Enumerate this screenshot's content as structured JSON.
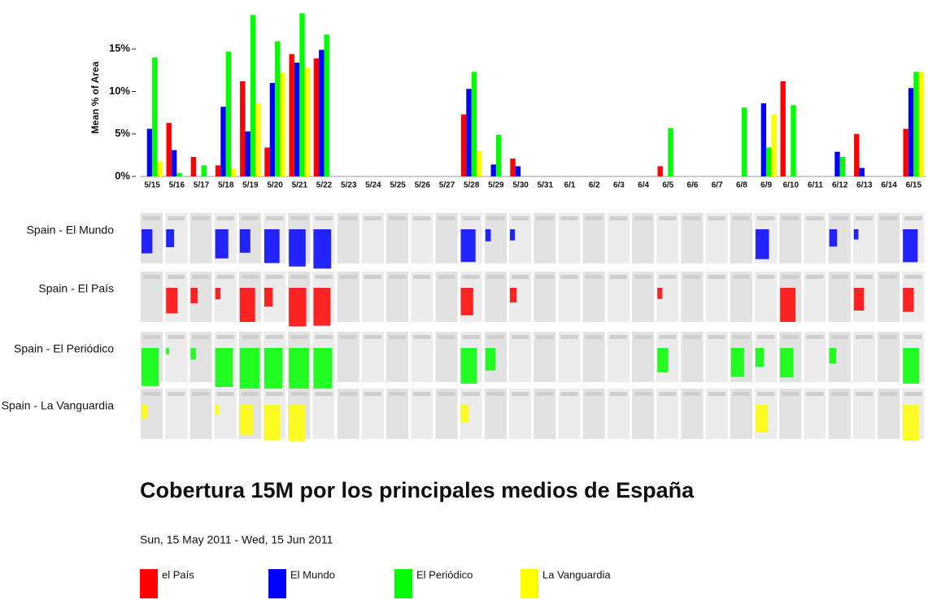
{
  "chart_data": {
    "type": "bar",
    "y_label": "Mean % of Area",
    "categories": [
      "5/15",
      "5/16",
      "5/17",
      "5/18",
      "5/19",
      "5/20",
      "5/21",
      "5/22",
      "5/23",
      "5/24",
      "5/25",
      "5/26",
      "5/27",
      "5/28",
      "5/29",
      "5/30",
      "5/31",
      "6/1",
      "6/2",
      "6/3",
      "6/4",
      "6/5",
      "6/6",
      "6/7",
      "6/8",
      "6/9",
      "6/10",
      "6/11",
      "6/12",
      "6/13",
      "6/14",
      "6/15"
    ],
    "series": [
      {
        "name": "el País",
        "color": "#ff0000",
        "values": [
          0,
          6.3,
          2.3,
          1.3,
          11.2,
          3.4,
          14.4,
          13.9,
          0,
          0,
          0,
          0,
          0,
          7.3,
          0,
          2.1,
          0,
          0,
          0,
          0,
          0,
          1.2,
          0,
          0,
          0,
          0,
          11.2,
          0,
          0,
          5.0,
          0,
          5.6
        ]
      },
      {
        "name": "El Mundo",
        "color": "#0000ff",
        "values": [
          5.6,
          3.1,
          0,
          8.2,
          5.3,
          11.0,
          13.4,
          14.9,
          0,
          0,
          0,
          0,
          0,
          10.3,
          1.4,
          1.2,
          0,
          0,
          0,
          0,
          0,
          0,
          0,
          0,
          0,
          8.6,
          0,
          0,
          2.9,
          1.0,
          0,
          10.4
        ]
      },
      {
        "name": "El Periódico",
        "color": "#00ff00",
        "values": [
          14.0,
          0.4,
          1.3,
          14.7,
          19.0,
          15.9,
          19.2,
          16.7,
          0,
          0,
          0,
          0,
          0,
          12.3,
          4.9,
          0,
          0,
          0,
          0,
          0,
          0,
          5.7,
          0,
          0,
          8.1,
          3.4,
          8.4,
          0,
          2.3,
          0,
          0,
          12.3
        ]
      },
      {
        "name": "La Vanguardia",
        "color": "#ffff00",
        "values": [
          1.8,
          0,
          0,
          0.9,
          8.6,
          12.2,
          12.8,
          0,
          0,
          0,
          0,
          0,
          0,
          3.0,
          0,
          0,
          0,
          0,
          0,
          0,
          0,
          0,
          0,
          0,
          0,
          7.3,
          0,
          0,
          0,
          0,
          0,
          12.3
        ]
      }
    ],
    "ylim": [
      0,
      20
    ],
    "yticks": [
      {
        "value": 0,
        "label": "0%"
      },
      {
        "value": 5,
        "label": "5%"
      },
      {
        "value": 10,
        "label": "10%"
      },
      {
        "value": 15,
        "label": "15%"
      }
    ],
    "grid": false,
    "rows": [
      "Spain - El Mundo",
      "Spain - El País",
      "Spain - El Periódico",
      "Spain - La Vanguardia"
    ],
    "title": "Cobertura 15M por los principales medios de España",
    "subtitle": "Sun, 15 May 2011 - Wed, 15 Jun 2011"
  }
}
